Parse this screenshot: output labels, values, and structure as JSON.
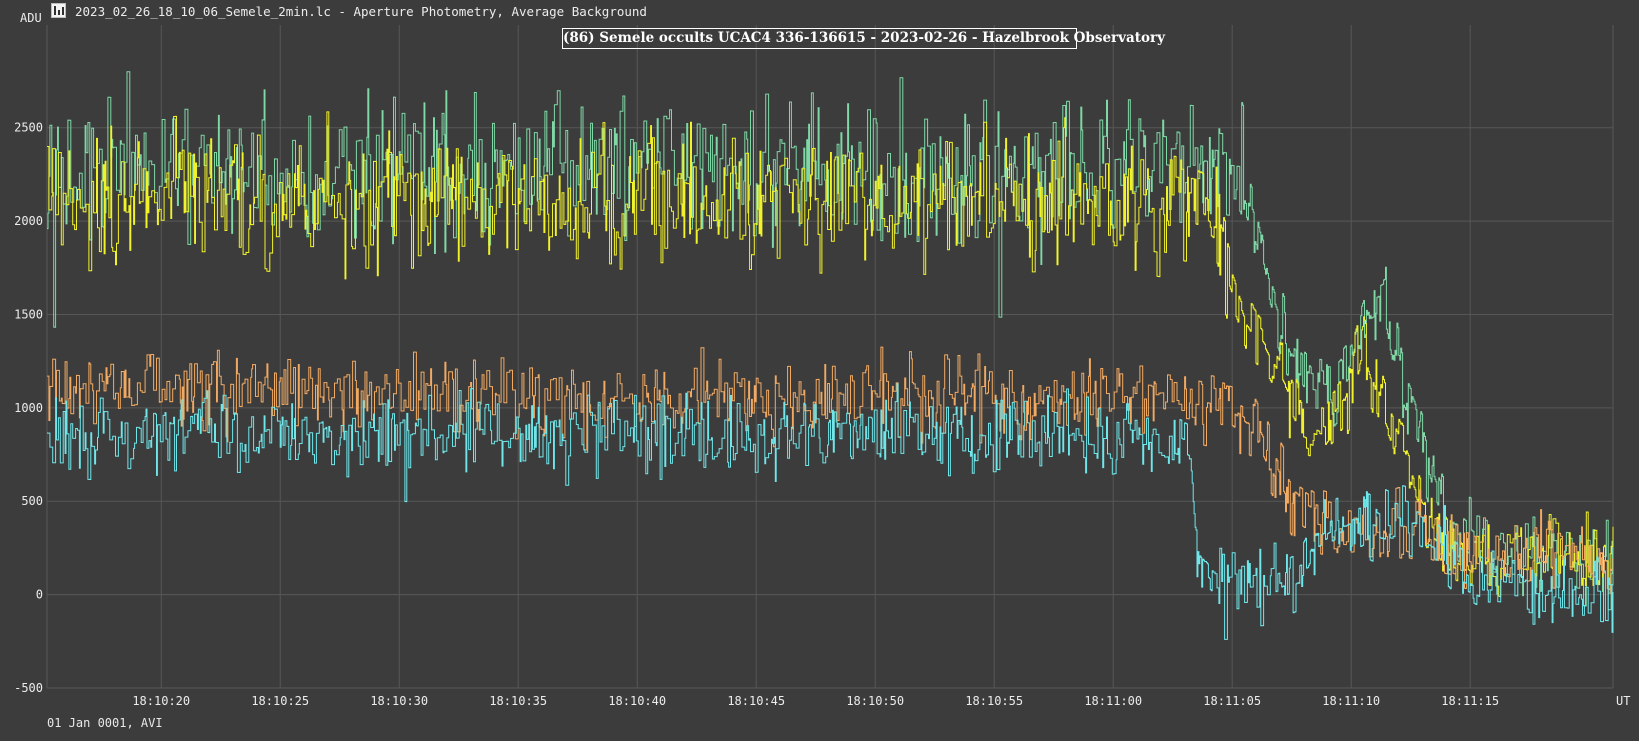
{
  "window": {
    "title": "2023_02_26_18_10_06_Semele_2min.lc - Aperture Photometry, Average Background",
    "icon": "lightcurve-app-icon"
  },
  "footer": {
    "date_text": "01 Jan 0001, AVI"
  },
  "chart_data": {
    "type": "line",
    "title": "(86) Semele occults UCAC4 336-136615 - 2023-02-26 - Hazelbrook Observatory",
    "ylabel": "ADU",
    "xlabel": "UT",
    "x_unit_note": "seconds after 18:10:00 UT",
    "xlim": [
      15.2,
      81.0
    ],
    "ylim": [
      -500,
      3050
    ],
    "grid": true,
    "x_ticks": [
      {
        "value": 20,
        "label": "18:10:20"
      },
      {
        "value": 25,
        "label": "18:10:25"
      },
      {
        "value": 30,
        "label": "18:10:30"
      },
      {
        "value": 35,
        "label": "18:10:35"
      },
      {
        "value": 40,
        "label": "18:10:40"
      },
      {
        "value": 45,
        "label": "18:10:45"
      },
      {
        "value": 50,
        "label": "18:10:50"
      },
      {
        "value": 55,
        "label": "18:10:55"
      },
      {
        "value": 60,
        "label": "18:11:00"
      },
      {
        "value": 65,
        "label": "18:11:05"
      },
      {
        "value": 70,
        "label": "18:11:10"
      },
      {
        "value": 75,
        "label": "18:11:15"
      }
    ],
    "y_ticks": [
      {
        "value": -500,
        "label": "-500"
      },
      {
        "value": 0,
        "label": "0"
      },
      {
        "value": 500,
        "label": "500"
      },
      {
        "value": 1000,
        "label": "1000"
      },
      {
        "value": 1500,
        "label": "1500"
      },
      {
        "value": 2000,
        "label": "2000"
      },
      {
        "value": 2500,
        "label": "2500"
      }
    ],
    "colors": {
      "background": "#3c3c3c",
      "grid": "#575757",
      "axis_text": "#ececec"
    },
    "series": [
      {
        "color": "#7fd8a6",
        "x": [
          15.2,
          18.5,
          21.8,
          25.1,
          28.4,
          31.7,
          35.0,
          38.3,
          41.6,
          44.9,
          48.2,
          51.5,
          54.8,
          58.1,
          61.4,
          63.5,
          64.7,
          65.3,
          66.0,
          66.6,
          67.4,
          68.3,
          69.2,
          70.0,
          70.8,
          71.4,
          72.2,
          73.0,
          73.5,
          74.3,
          75.2,
          76.1,
          77.0,
          78.0,
          79.0,
          80.0,
          81.0
        ],
        "y": [
          2300,
          2270,
          2260,
          2250,
          2265,
          2255,
          2260,
          2270,
          2265,
          2255,
          2260,
          2265,
          2260,
          2270,
          2300,
          2280,
          2260,
          2250,
          2000,
          1600,
          1300,
          1150,
          1120,
          1250,
          1550,
          1600,
          1100,
          850,
          600,
          350,
          250,
          230,
          200,
          190,
          200,
          180,
          170
        ]
      },
      {
        "color": "#f2f22a",
        "x": [
          15.2,
          18.5,
          21.8,
          25.1,
          28.4,
          31.7,
          35.0,
          38.3,
          41.6,
          44.9,
          48.2,
          51.5,
          54.8,
          58.1,
          61.4,
          63.5,
          64.3,
          64.9,
          65.6,
          66.4,
          67.2,
          68.0,
          68.9,
          69.7,
          70.5,
          71.4,
          72.2,
          73.0,
          74.0,
          75.0,
          76.0,
          77.0,
          78.0,
          79.0,
          80.0,
          81.0
        ],
        "y": [
          2150,
          2130,
          2140,
          2120,
          2130,
          2110,
          2120,
          2130,
          2120,
          2110,
          2120,
          2115,
          2120,
          2110,
          2100,
          2050,
          1950,
          1700,
          1450,
          1300,
          1100,
          900,
          850,
          1000,
          1350,
          950,
          700,
          450,
          300,
          200,
          200,
          180,
          200,
          210,
          200,
          190
        ]
      },
      {
        "color": "#f2aa62",
        "x": [
          15.2,
          18.5,
          21.8,
          25.1,
          28.4,
          31.7,
          35.0,
          38.3,
          41.6,
          44.9,
          48.2,
          51.5,
          54.8,
          58.1,
          61.4,
          63.5,
          65.0,
          65.9,
          66.8,
          67.6,
          68.4,
          69.2,
          70.0,
          71.0,
          72.0,
          73.0,
          74.0,
          75.0,
          76.0,
          77.0,
          78.0,
          79.0,
          80.0,
          81.0
        ],
        "y": [
          1100,
          1080,
          1090,
          1070,
          1080,
          1075,
          1070,
          1080,
          1070,
          1060,
          1070,
          1065,
          1070,
          1060,
          1060,
          1050,
          1000,
          900,
          650,
          450,
          380,
          350,
          340,
          350,
          350,
          300,
          250,
          210,
          200,
          190,
          210,
          200,
          190,
          180
        ]
      },
      {
        "color": "#6fe6ea",
        "x": [
          15.2,
          18.5,
          21.8,
          25.1,
          28.4,
          31.7,
          35.0,
          38.3,
          41.6,
          44.9,
          48.2,
          51.5,
          54.8,
          58.1,
          61.4,
          62.5,
          63.2,
          63.6,
          64.2,
          65.5,
          66.8,
          68.0,
          68.6,
          69.6,
          70.6,
          71.5,
          72.5,
          73.5,
          74.5,
          75.5,
          76.5,
          77.5,
          78.5,
          79.5,
          81.0
        ],
        "y": [
          870,
          860,
          870,
          855,
          860,
          850,
          860,
          855,
          850,
          845,
          850,
          845,
          850,
          840,
          840,
          850,
          800,
          150,
          50,
          50,
          60,
          150,
          300,
          380,
          450,
          380,
          350,
          300,
          150,
          60,
          40,
          30,
          20,
          20,
          10
        ]
      }
    ]
  }
}
